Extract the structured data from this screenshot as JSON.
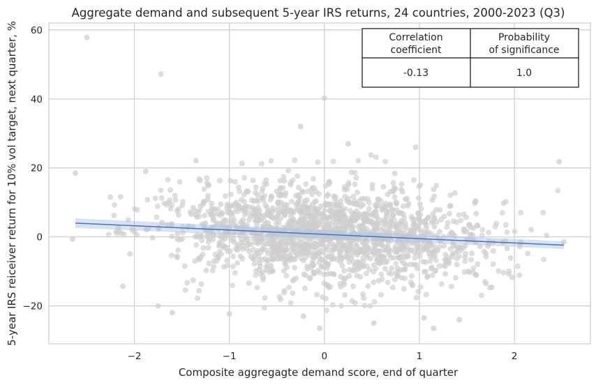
{
  "chart_data": {
    "type": "scatter",
    "title": "Aggregate demand and subsequent 5-year IRS returns, 24 countries, 2000-2023 (Q3)",
    "xlabel": "Composite aggregagte demand score, end of quarter",
    "ylabel": "5-year IRS reiceiver return for 10% vol target, next quarter, %",
    "xlim": [
      -2.9,
      2.8
    ],
    "ylim": [
      -31,
      62
    ],
    "xticks": [
      -2,
      -1,
      0,
      1,
      2
    ],
    "xtick_labels": [
      "−2",
      "−1",
      "0",
      "1",
      "2"
    ],
    "yticks": [
      -20,
      0,
      20,
      40,
      60
    ],
    "ytick_labels": [
      "−20",
      "0",
      "20",
      "40",
      "60"
    ],
    "grid": true,
    "point_color": "#cfcfcf",
    "line_color": "#4c72b0",
    "band_color": "#a9bfe3",
    "regression": {
      "x": [
        -2.62,
        2.52
      ],
      "y": [
        4.0,
        -2.4
      ],
      "ci_low": [
        2.6,
        -3.5
      ],
      "ci_high": [
        5.4,
        -1.3
      ]
    },
    "notable_points": [
      {
        "x": -2.5,
        "y": 57.8
      },
      {
        "x": -1.72,
        "y": 47.2
      },
      {
        "x": 0.0,
        "y": 40.2
      },
      {
        "x": -0.25,
        "y": 32.0
      },
      {
        "x": 0.25,
        "y": 27.0
      },
      {
        "x": 0.96,
        "y": 26.0
      },
      {
        "x": 2.47,
        "y": 21.8
      },
      {
        "x": -1.88,
        "y": 19.0
      },
      {
        "x": -2.62,
        "y": 18.5
      },
      {
        "x": -2.65,
        "y": -0.6
      },
      {
        "x": 2.52,
        "y": -1.5
      },
      {
        "x": -0.05,
        "y": -26.5
      },
      {
        "x": 1.15,
        "y": -26.5
      },
      {
        "x": -1.75,
        "y": -20.0
      },
      {
        "x": 0.52,
        "y": -25.0
      },
      {
        "x": 1.42,
        "y": -24.0
      },
      {
        "x": -1.0,
        "y": -22.3
      },
      {
        "x": -0.22,
        "y": -23.0
      },
      {
        "x": 1.05,
        "y": -23.5
      },
      {
        "x": -1.6,
        "y": -22.0
      }
    ],
    "table": {
      "headers": [
        [
          "Correlation",
          "coefficient"
        ],
        [
          "Probability",
          "of significance"
        ]
      ],
      "values": [
        "-0.13",
        "1.0"
      ]
    }
  }
}
